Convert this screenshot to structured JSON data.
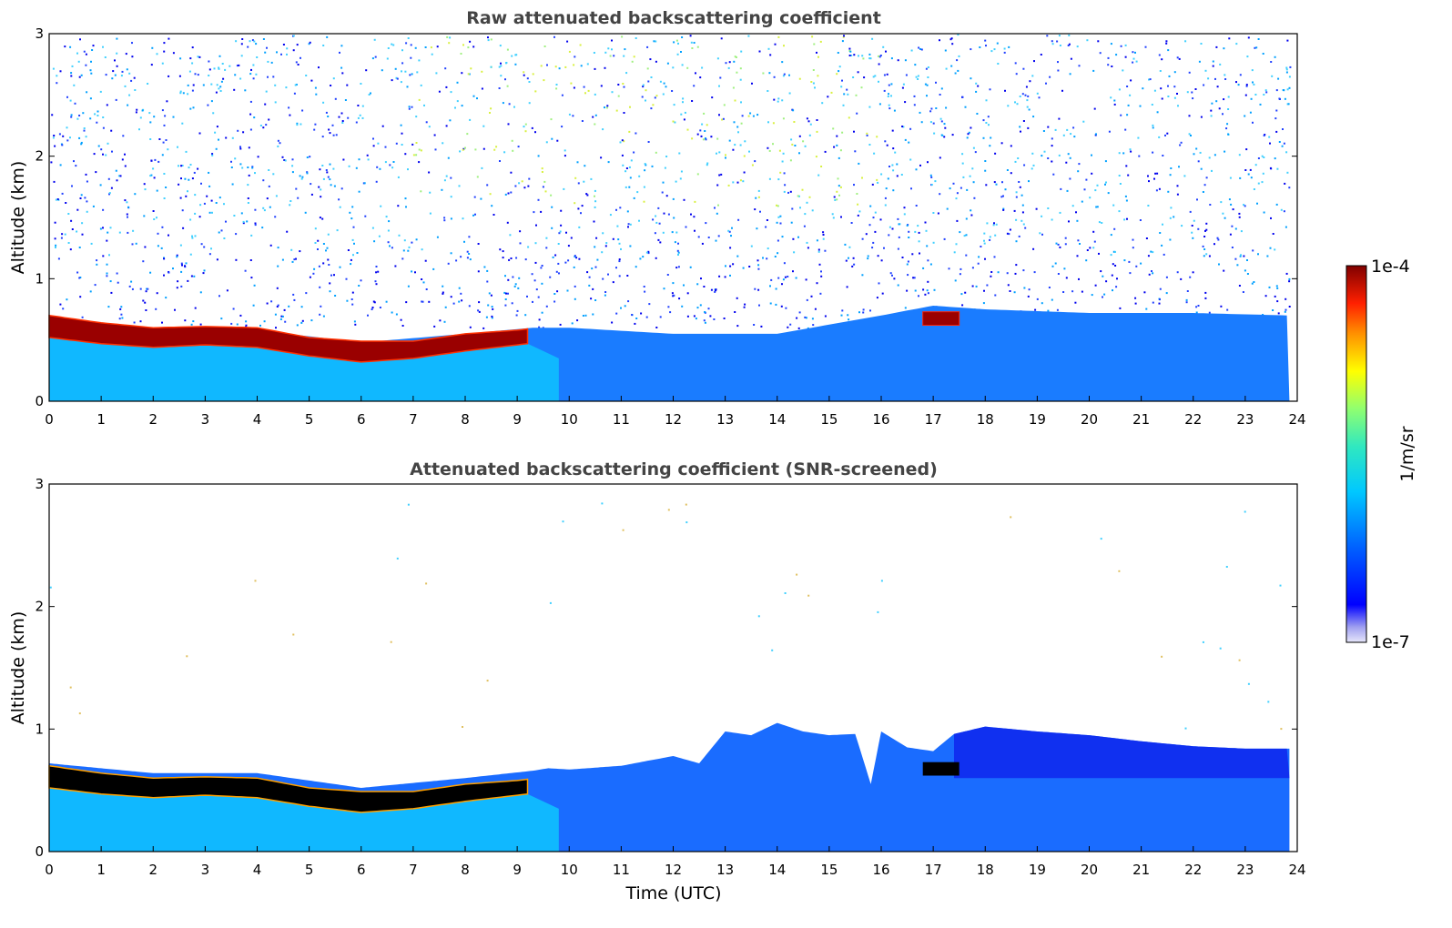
{
  "chart_data": [
    {
      "type": "heatmap",
      "title": "Raw attenuated backscattering coefficient",
      "xlabel": "",
      "ylabel": "Altitude (km)",
      "xlim": [
        0,
        24
      ],
      "ylim": [
        0,
        3
      ],
      "x_ticks": [
        "0",
        "1",
        "2",
        "3",
        "4",
        "5",
        "6",
        "7",
        "8",
        "9",
        "10",
        "11",
        "12",
        "13",
        "14",
        "15",
        "16",
        "17",
        "18",
        "19",
        "20",
        "21",
        "22",
        "23",
        "24"
      ],
      "y_ticks": [
        "0",
        "1",
        "2",
        "3"
      ],
      "screened": false,
      "features": {
        "cloud_layer": {
          "hours": [
            0,
            1,
            2,
            3,
            4,
            5,
            6,
            7,
            8,
            9,
            9.2
          ],
          "base_km": [
            0.52,
            0.47,
            0.44,
            0.46,
            0.44,
            0.37,
            0.32,
            0.35,
            0.41,
            0.46,
            0.47
          ],
          "top_km": [
            0.7,
            0.64,
            0.6,
            0.61,
            0.6,
            0.52,
            0.49,
            0.49,
            0.55,
            0.58,
            0.59
          ]
        },
        "secondary_cloud": {
          "hours": [
            16.8,
            17.5
          ],
          "base_km": 0.62,
          "top_km": 0.73
        }
      }
    },
    {
      "type": "heatmap",
      "title": "Attenuated backscattering coefficient (SNR-screened)",
      "xlabel": "Time (UTC)",
      "ylabel": "Altitude (km)",
      "xlim": [
        0,
        24
      ],
      "ylim": [
        0,
        3
      ],
      "x_ticks": [
        "0",
        "1",
        "2",
        "3",
        "4",
        "5",
        "6",
        "7",
        "8",
        "9",
        "10",
        "11",
        "12",
        "13",
        "14",
        "15",
        "16",
        "17",
        "18",
        "19",
        "20",
        "21",
        "22",
        "23",
        "24"
      ],
      "y_ticks": [
        "0",
        "1",
        "2",
        "3"
      ],
      "screened": true,
      "features": {
        "boundary_layer_top": {
          "hours": [
            9.6,
            10,
            11,
            12,
            12.5,
            13,
            13.5,
            14,
            14.5,
            15,
            15.5,
            15.8,
            16,
            16.5,
            17,
            17.4,
            18,
            19,
            20,
            21,
            22,
            23,
            23.85
          ],
          "top_km": [
            0.68,
            0.67,
            0.7,
            0.78,
            0.72,
            0.98,
            0.95,
            1.05,
            0.98,
            0.95,
            0.96,
            0.55,
            0.98,
            0.85,
            0.82,
            0.96,
            1.02,
            0.98,
            0.95,
            0.9,
            0.86,
            0.84,
            0.84
          ]
        }
      }
    }
  ],
  "colorbar": {
    "max_label": "1e-4",
    "min_label": "1e-7",
    "units": "1/m/sr",
    "colors": [
      "#e0e0f8",
      "#0000ff",
      "#00c8ff",
      "#80ff80",
      "#ffff00",
      "#ff4000",
      "#800000"
    ]
  }
}
